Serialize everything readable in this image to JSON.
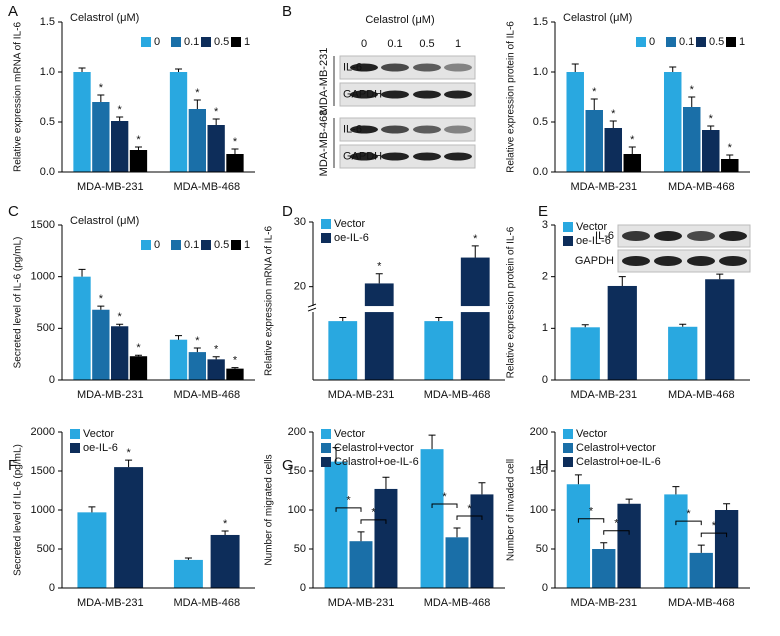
{
  "chart_data": [
    {
      "type": "bar",
      "panel": "A",
      "ylabel": "Relative expression  mRNA of IL-6",
      "legend_title": "Celastrol (μM)",
      "legend": "top-right",
      "categories": [
        "MDA-MB-231",
        "MDA-MB-468"
      ],
      "series": [
        {
          "name": "0",
          "color": "#29a8e0",
          "values": [
            1.0,
            1.0
          ],
          "errors": [
            0.04,
            0.03
          ],
          "stars": [
            null,
            null
          ]
        },
        {
          "name": "0.1",
          "color": "#1a6fa8",
          "values": [
            0.7,
            0.63
          ],
          "errors": [
            0.07,
            0.09
          ],
          "stars": [
            "*",
            "*"
          ]
        },
        {
          "name": "0.5",
          "color": "#0d2d5a",
          "values": [
            0.51,
            0.47
          ],
          "errors": [
            0.04,
            0.06
          ],
          "stars": [
            "*",
            "*"
          ]
        },
        {
          "name": "1",
          "color": "#000000",
          "values": [
            0.22,
            0.18
          ],
          "errors": [
            0.03,
            0.05
          ],
          "stars": [
            "*",
            "*"
          ]
        }
      ],
      "ylim": [
        0,
        1.5
      ],
      "yticks": [
        {
          "value": 0,
          "label": "0.0"
        },
        0.5,
        {
          "value": 1,
          "label": "1.0"
        },
        1.5
      ]
    },
    {
      "type": "bar",
      "panel": "B",
      "ylabel": "Relative expression  protein of IL-6",
      "legend_title": "Celastrol (μM)",
      "legend": "top-right",
      "categories": [
        "MDA-MB-231",
        "MDA-MB-468"
      ],
      "series": [
        {
          "name": "0",
          "color": "#29a8e0",
          "values": [
            1.0,
            1.0
          ],
          "errors": [
            0.08,
            0.05
          ],
          "stars": [
            null,
            null
          ]
        },
        {
          "name": "0.1",
          "color": "#1a6fa8",
          "values": [
            0.62,
            0.65
          ],
          "errors": [
            0.11,
            0.1
          ],
          "stars": [
            "*",
            "*"
          ]
        },
        {
          "name": "0.5",
          "color": "#0d2d5a",
          "values": [
            0.44,
            0.42
          ],
          "errors": [
            0.07,
            0.04
          ],
          "stars": [
            "*",
            "*"
          ]
        },
        {
          "name": "1",
          "color": "#000000",
          "values": [
            0.18,
            0.13
          ],
          "errors": [
            0.07,
            0.04
          ],
          "stars": [
            "*",
            "*"
          ]
        }
      ],
      "ylim": [
        0,
        1.5
      ],
      "yticks": [
        {
          "value": 0,
          "label": "0.0"
        },
        0.5,
        {
          "value": 1,
          "label": "1.0"
        },
        1.5
      ],
      "blot": {
        "header": "Celastrol (μM)",
        "lanes": [
          "0",
          "0.1",
          "0.5",
          "1"
        ],
        "groups": [
          {
            "name": "MDA-MB-231",
            "rows": [
              "IL-6",
              "GAPDH"
            ]
          },
          {
            "name": "MDA-MB-468",
            "rows": [
              "IL-6",
              "GAPDH"
            ]
          }
        ]
      }
    },
    {
      "type": "bar",
      "panel": "C",
      "ylabel": "Secreted level of IL-6 (pg/mL)",
      "legend_title": "Celastrol (μM)",
      "legend": "top-right",
      "categories": [
        "MDA-MB-231",
        "MDA-MB-468"
      ],
      "series": [
        {
          "name": "0",
          "color": "#29a8e0",
          "values": [
            1000,
            390
          ],
          "errors": [
            70,
            40
          ],
          "stars": [
            null,
            null
          ]
        },
        {
          "name": "0.1",
          "color": "#1a6fa8",
          "values": [
            680,
            270
          ],
          "errors": [
            35,
            40
          ],
          "stars": [
            "*",
            "*"
          ]
        },
        {
          "name": "0.5",
          "color": "#0d2d5a",
          "values": [
            520,
            200
          ],
          "errors": [
            20,
            25
          ],
          "stars": [
            "*",
            "*"
          ]
        },
        {
          "name": "1",
          "color": "#000000",
          "values": [
            230,
            110
          ],
          "errors": [
            10,
            10
          ],
          "stars": [
            "*",
            "*"
          ]
        }
      ],
      "ylim": [
        0,
        1500
      ],
      "yticks": [
        0,
        500,
        1000,
        1500
      ]
    },
    {
      "type": "bar",
      "panel": "D",
      "ylabel": "Relative expression mRNA of IL-6",
      "legend": "top-left",
      "categories": [
        "MDA-MB-231",
        "MDA-MB-468"
      ],
      "series": [
        {
          "name": "Vector",
          "color": "#29a8e0",
          "values": [
            1.3,
            1.3
          ],
          "errors": [
            0.08,
            0.08
          ],
          "stars": [
            null,
            null
          ]
        },
        {
          "name": "oe-IL-6",
          "color": "#0d2d5a",
          "values": [
            20.5,
            24.5
          ],
          "errors": [
            1.5,
            1.8
          ],
          "stars": [
            "*",
            "*"
          ]
        }
      ],
      "ylim": [
        0,
        30
      ],
      "yticks": [
        20,
        30
      ],
      "axis_break": [
        1.5,
        17
      ]
    },
    {
      "type": "bar",
      "panel": "E",
      "ylabel": "Relative expression protein of IL-6",
      "legend": "top-left",
      "categories": [
        "MDA-MB-231",
        "MDA-MB-468"
      ],
      "series": [
        {
          "name": "Vector",
          "color": "#29a8e0",
          "values": [
            1.02,
            1.03
          ],
          "errors": [
            0.05,
            0.05
          ],
          "stars": [
            null,
            null
          ]
        },
        {
          "name": "oe-IL-6",
          "color": "#0d2d5a",
          "values": [
            1.82,
            1.95
          ],
          "errors": [
            0.18,
            0.1
          ],
          "stars": [
            "*",
            "*"
          ]
        }
      ],
      "ylim": [
        0,
        3
      ],
      "yticks": [
        0,
        1,
        2,
        3
      ],
      "blot": {
        "rows": [
          "IL-6",
          "GAPDH"
        ]
      }
    },
    {
      "type": "bar",
      "panel": "F",
      "ylabel": "Secreted level of IL-6 (pg/mL)",
      "legend": "top-left",
      "categories": [
        "MDA-MB-231",
        "MDA-MB-468"
      ],
      "series": [
        {
          "name": "Vector",
          "color": "#29a8e0",
          "values": [
            970,
            360
          ],
          "errors": [
            70,
            25
          ],
          "stars": [
            null,
            null
          ]
        },
        {
          "name": "oe-IL-6",
          "color": "#0d2d5a",
          "values": [
            1550,
            680
          ],
          "errors": [
            90,
            50
          ],
          "stars": [
            "*",
            "*"
          ]
        }
      ],
      "ylim": [
        0,
        2000
      ],
      "yticks": [
        0,
        500,
        1000,
        1500,
        2000
      ]
    },
    {
      "type": "bar",
      "panel": "G",
      "ylabel": "Number of migrated cells",
      "legend": "top-left",
      "categories": [
        "MDA-MB-231",
        "MDA-MB-468"
      ],
      "series": [
        {
          "name": "Vector",
          "color": "#29a8e0",
          "values": [
            162,
            178
          ],
          "errors": [
            18,
            18
          ]
        },
        {
          "name": "Celastrol+vector",
          "color": "#1a6fa8",
          "values": [
            60,
            65
          ],
          "errors": [
            12,
            12
          ]
        },
        {
          "name": "Celastrol+oe-IL-6",
          "color": "#0d2d5a",
          "values": [
            127,
            120
          ],
          "errors": [
            15,
            15
          ]
        }
      ],
      "brackets": [
        {
          "category": 0,
          "series": [
            0,
            1
          ],
          "label": "*"
        },
        {
          "category": 0,
          "series": [
            1,
            2
          ],
          "label": "*"
        },
        {
          "category": 1,
          "series": [
            0,
            1
          ],
          "label": "*"
        },
        {
          "category": 1,
          "series": [
            1,
            2
          ],
          "label": "*"
        }
      ],
      "ylim": [
        0,
        200
      ],
      "yticks": [
        0,
        50,
        100,
        150,
        200
      ]
    },
    {
      "type": "bar",
      "panel": "H",
      "ylabel": "Number of invaded cell",
      "legend": "top-left",
      "categories": [
        "MDA-MB-231",
        "MDA-MB-468"
      ],
      "series": [
        {
          "name": "Vector",
          "color": "#29a8e0",
          "values": [
            133,
            120
          ],
          "errors": [
            12,
            10
          ]
        },
        {
          "name": "Celastrol+vector",
          "color": "#1a6fa8",
          "values": [
            50,
            45
          ],
          "errors": [
            8,
            10
          ]
        },
        {
          "name": "Celastrol+oe-IL-6",
          "color": "#0d2d5a",
          "values": [
            108,
            100
          ],
          "errors": [
            6,
            8
          ]
        }
      ],
      "brackets": [
        {
          "category": 0,
          "series": [
            0,
            1
          ],
          "label": "*"
        },
        {
          "category": 0,
          "series": [
            1,
            2
          ],
          "label": "*"
        },
        {
          "category": 1,
          "series": [
            0,
            1
          ],
          "label": "*"
        },
        {
          "category": 1,
          "series": [
            1,
            2
          ],
          "label": "*"
        }
      ],
      "ylim": [
        0,
        200
      ],
      "yticks": [
        0,
        50,
        100,
        150,
        200
      ]
    }
  ]
}
